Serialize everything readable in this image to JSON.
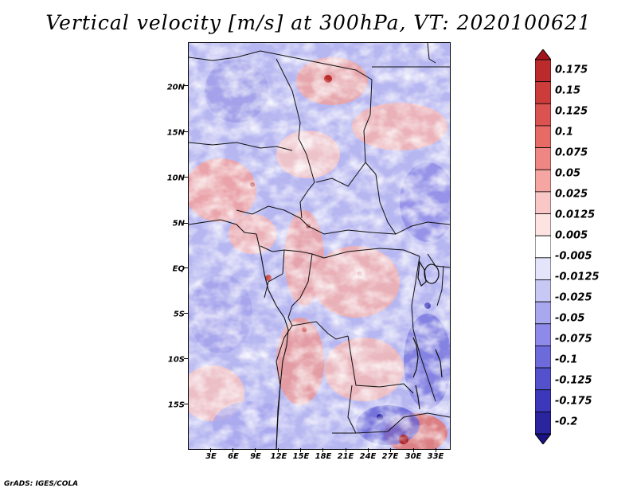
{
  "title": "Vertical velocity [m/s] at 300hPa, VT: 2020100621",
  "footer": "GrADS: IGES/COLA",
  "lat_labels": [
    "20N",
    "15N",
    "10N",
    "5N",
    "EQ",
    "5S",
    "10S",
    "15S"
  ],
  "lat_values": [
    20,
    15,
    10,
    5,
    0,
    -5,
    -10,
    -15
  ],
  "lon_labels": [
    "3E",
    "6E",
    "9E",
    "12E",
    "15E",
    "18E",
    "21E",
    "24E",
    "27E",
    "30E",
    "33E"
  ],
  "lon_values": [
    3,
    6,
    9,
    12,
    15,
    18,
    21,
    24,
    27,
    30,
    33
  ],
  "map_extent": {
    "lon_min": 0.5,
    "lon_max": 35,
    "lat_min": -20,
    "lat_max": 24.7
  },
  "colorbar": {
    "labels": [
      "0.175",
      "0.15",
      "0.125",
      "0.1",
      "0.075",
      "0.05",
      "0.025",
      "0.0125",
      "0.005",
      "-0.005",
      "-0.0125",
      "-0.025",
      "-0.05",
      "-0.075",
      "-0.1",
      "-0.125",
      "-0.175",
      "-0.2"
    ],
    "colors": [
      "#a5141c",
      "#bb2b2b",
      "#cc3c3b",
      "#db5350",
      "#e66a66",
      "#ee8683",
      "#f5a6a3",
      "#f9c8c6",
      "#fde3e2",
      "#ffffff",
      "#e4e4fa",
      "#c8c8f4",
      "#a9a8ef",
      "#8d8ae9",
      "#6d6adc",
      "#5451cd",
      "#3c38ba",
      "#2a249f",
      "#1a1282"
    ]
  }
}
